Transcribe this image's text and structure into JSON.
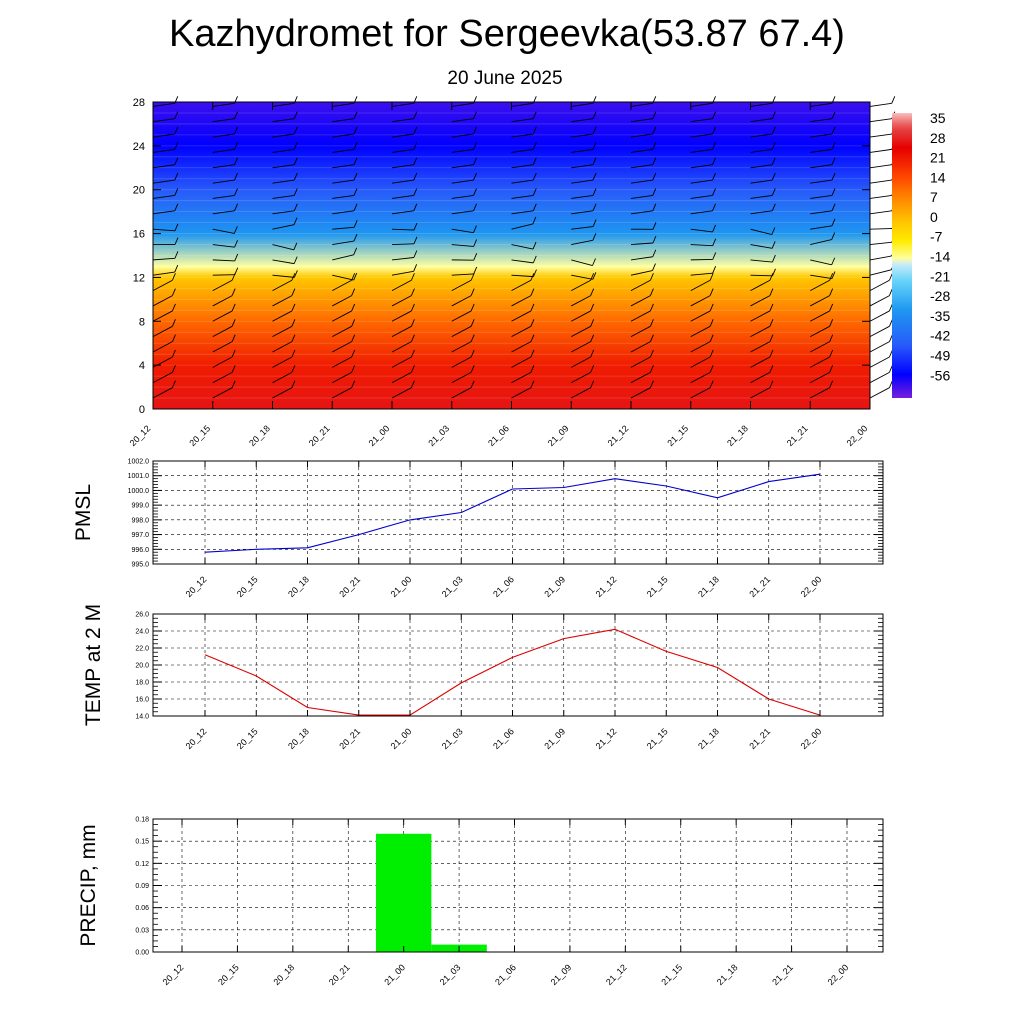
{
  "header": {
    "title": "Kazhydromet for Sergeevka(53.87 67.4)",
    "subtitle": "20 June 2025"
  },
  "colors": {
    "pmsl_line": "#0000cc",
    "temp_line": "#dd0000",
    "precip_bar": "#00ee00",
    "grid": "#000000",
    "wind_barb": "#000000"
  },
  "chart_data": [
    {
      "id": "crosssection",
      "type": "heatmap",
      "title": "",
      "xlabel": "",
      "ylabel": "",
      "categories": [
        "20_12",
        "20_15",
        "20_18",
        "20_21",
        "21_00",
        "21_03",
        "21_06",
        "21_09",
        "21_12",
        "21_15",
        "21_18",
        "21_21",
        "22_00"
      ],
      "y_ticks": [
        "0",
        "4",
        "8",
        "12",
        "16",
        "20",
        "24",
        "28"
      ],
      "ylim": [
        0,
        28
      ],
      "colorbar_labels": [
        "35",
        "28",
        "21",
        "14",
        "7",
        "0",
        "-7",
        "-14",
        "-21",
        "-28",
        "-35",
        "-42",
        "-49",
        "-56"
      ],
      "colorbar_range": [
        -60,
        38
      ],
      "overlay": "wind-barbs",
      "temperature_profile": [
        {
          "height": 0,
          "value": 28
        },
        {
          "height": 4,
          "value": 22
        },
        {
          "height": 8,
          "value": 12
        },
        {
          "height": 12,
          "value": 0
        },
        {
          "height": 13,
          "value": -12
        },
        {
          "height": 16,
          "value": -30
        },
        {
          "height": 20,
          "value": -42
        },
        {
          "height": 24,
          "value": -52
        },
        {
          "height": 28,
          "value": -56
        }
      ]
    },
    {
      "id": "pmsl",
      "type": "line",
      "title": "",
      "ylabel": "PMSL",
      "categories": [
        "20_12",
        "20_15",
        "20_18",
        "20_21",
        "21_00",
        "21_03",
        "21_06",
        "21_09",
        "21_12",
        "21_15",
        "21_18",
        "21_21",
        "22_00"
      ],
      "y_ticks": [
        "995.0",
        "996.0",
        "997.0",
        "998.0",
        "999.0",
        "1000.0",
        "1001.0",
        "1002.0"
      ],
      "ylim": [
        995.0,
        1002.0
      ],
      "series": [
        {
          "values": [
            995.8,
            996.0,
            996.1,
            997.0,
            998.0,
            998.5,
            1000.1,
            1000.2,
            1000.8,
            1000.3,
            999.5,
            1000.6,
            1001.1
          ]
        }
      ],
      "grid": true
    },
    {
      "id": "temp",
      "type": "line",
      "title": "",
      "ylabel": "TEMP at 2 M",
      "categories": [
        "20_12",
        "20_15",
        "20_18",
        "20_21",
        "21_00",
        "21_03",
        "21_06",
        "21_09",
        "21_12",
        "21_15",
        "21_18",
        "21_21",
        "22_00"
      ],
      "y_ticks": [
        "14.0",
        "16.0",
        "18.0",
        "20.0",
        "22.0",
        "24.0",
        "26.0"
      ],
      "ylim": [
        14.0,
        26.0
      ],
      "series": [
        {
          "values": [
            21.2,
            18.7,
            15.0,
            14.1,
            14.1,
            17.9,
            20.9,
            23.1,
            24.2,
            21.6,
            19.7,
            16.0,
            14.1
          ]
        }
      ],
      "grid": true
    },
    {
      "id": "precip",
      "type": "bar",
      "title": "",
      "ylabel": "PRECIP, mm",
      "categories": [
        "20_12",
        "20_15",
        "20_18",
        "20_21",
        "21_00",
        "21_03",
        "21_06",
        "21_09",
        "21_12",
        "21_15",
        "21_18",
        "21_21",
        "22_00"
      ],
      "y_ticks": [
        "0.00",
        "0.03",
        "0.06",
        "0.09",
        "0.12",
        "0.15",
        "0.18"
      ],
      "ylim": [
        0,
        0.18
      ],
      "values": [
        0,
        0,
        0,
        0,
        0.16,
        0.01,
        0,
        0,
        0,
        0,
        0,
        0,
        0
      ],
      "grid": true
    }
  ]
}
